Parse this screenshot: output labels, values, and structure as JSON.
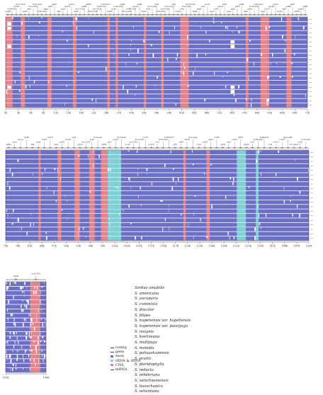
{
  "colors": {
    "exon": "#6b6fc8",
    "cns": "#e9838a",
    "trna_rrna": "#7fd2d6",
    "background": "#ffffff",
    "frame": "#333333"
  },
  "legend": {
    "species": [
      "Sorbus amabilis",
      "S. americana",
      "S. aucuparia",
      "S. commixta",
      "S. discolor",
      "S. filipes",
      "S. hupehensis var. hupehensis",
      "S. hupehensis var. paucijuga",
      "S. insignis",
      "S. koehneana",
      "S. multijuga",
      "S. monoda",
      "S. pohuashanensis",
      "S. prattii",
      "S. pteridophylla",
      "S. reducta",
      "S. rehderiana",
      "S. setschwanensis",
      "S. tianschanica",
      "S. wilsoniana"
    ]
  },
  "key": {
    "items": [
      {
        "label": "contig",
        "color": "#444444",
        "style": "line"
      },
      {
        "label": "gene",
        "color": "#444444",
        "style": "line"
      },
      {
        "label": "exon",
        "color": "#6b6fc8",
        "style": "box"
      },
      {
        "label": "tRNA & rRNA",
        "color": "#7fd2d6",
        "style": "box"
      },
      {
        "label": "CNS",
        "color": "#e9838a",
        "style": "box"
      },
      {
        "label": "mRNA",
        "color": "#444444",
        "style": "line"
      }
    ]
  },
  "panels": [
    {
      "id": "panel-1",
      "axis_ticks": [
        "0k",
        "3k",
        "6k",
        "9k",
        "12k",
        "15k",
        "18k",
        "21k",
        "24k",
        "27k",
        "30k",
        "33k",
        "36k",
        "39k",
        "42k",
        "45k",
        "48k",
        "51k",
        "54k",
        "57k",
        "60k",
        "63k",
        "66k",
        "69k",
        "72k"
      ]
    },
    {
      "id": "panel-2",
      "axis_ticks": [
        "75k",
        "78k",
        "81k",
        "84k",
        "87k",
        "90k",
        "93k",
        "96k",
        "99k",
        "102k",
        "105k",
        "108k",
        "111k",
        "114k",
        "117k",
        "120k",
        "123k",
        "126k",
        "129k",
        "132k",
        "135k",
        "138k",
        "141k",
        "144k",
        "147k",
        "150k"
      ]
    },
    {
      "id": "panel-3",
      "axis_ticks": [
        "153k",
        "156k"
      ]
    }
  ],
  "gene_labels": {
    "panel_1": [
      "matK",
      "trnK-UUU",
      "rps16",
      "trnQ-UUG",
      "psbK",
      "psbI",
      "trnS-GCU",
      "trnG-UCC",
      "trnR-UCU",
      "atpA",
      "atpF",
      "atpH",
      "atpI",
      "rps2",
      "rpoC2",
      "rpoC1",
      "rpoB",
      "trnC-GCA",
      "petN",
      "psbM",
      "trnD-GUC",
      "trnY-GUA",
      "trnE-UUC",
      "trnT-GGU",
      "psbD",
      "psbC",
      "trnS-UGA",
      "psbZ",
      "trnG-GCC",
      "trnfM-CAU",
      "rps14",
      "psaB",
      "psaA",
      "ycf3",
      "trnS-GGA",
      "rps4",
      "trnT-UGU",
      "trnL-UAA",
      "trnF-GAA",
      "ndhJ",
      "ndhK",
      "ndhC",
      "trnV-UAC",
      "trnM-CAU",
      "atpE",
      "atpB",
      "rbcL",
      "accD",
      "psaI",
      "ycf4",
      "cemA",
      "petA",
      "psbJ",
      "psbL",
      "psbF",
      "psbE",
      "petL",
      "petG",
      "trnW-CCA",
      "trnP-UGG",
      "psaJ",
      "rpl33",
      "rps18",
      "rpl20",
      "rps12",
      "clpP",
      "psbB",
      "psbT",
      "psbN",
      "psbH",
      "petB"
    ],
    "panel_2": [
      "petD",
      "rpoA",
      "rps11",
      "rpl36",
      "infA",
      "rps8",
      "rpl14",
      "rpl16",
      "rps3",
      "rpl22",
      "rps19",
      "rpl2",
      "rpl23",
      "trnI-CAU",
      "ycf2",
      "trnL-CAA",
      "ndhB",
      "rps7",
      "rps12",
      "trnV-GAC",
      "rrn16",
      "trnI-GAU",
      "trnA-UGC",
      "rrn23",
      "rrn4.5",
      "rrn5",
      "trnR-ACG",
      "trnN-GUU",
      "ycf1",
      "ndhF",
      "rpl32",
      "trnL-UAG",
      "ccsA",
      "ndhD",
      "psaC",
      "ndhE",
      "ndhG",
      "ndhI",
      "ndhA",
      "ndhH",
      "rps15",
      "ycf1",
      "trnN-GUU",
      "trnR-ACG",
      "rrn5",
      "rrn4.5",
      "rrn23",
      "trnA-UGC",
      "trnI-GAU",
      "rrn16",
      "trnV-GAC"
    ],
    "panel_3": [
      "ndhB",
      "trnL-CAA"
    ]
  }
}
